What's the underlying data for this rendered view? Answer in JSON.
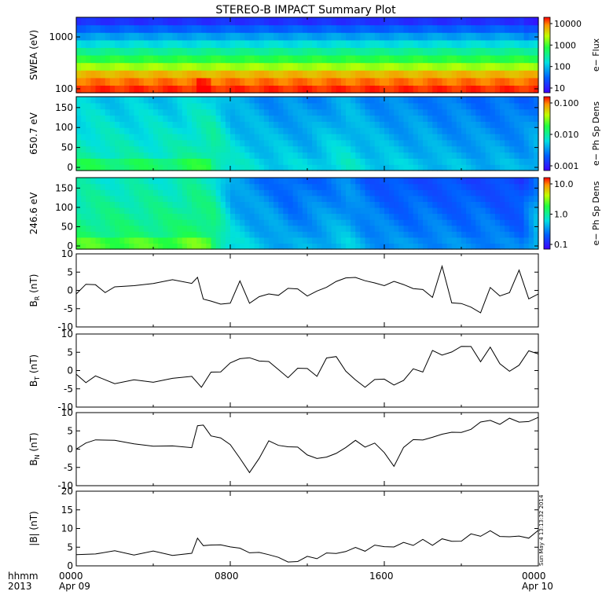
{
  "title": "STEREO-B IMPACT Summary Plot",
  "stamp": "Sun May  4 13:13:32 2014",
  "time_axis": {
    "row1": [
      "0000",
      "0800",
      "1600",
      "0000"
    ],
    "row2": [
      "Apr 09",
      "",
      "",
      "Apr 10"
    ],
    "left_row1": "hhmm",
    "left_row2": "2013"
  },
  "chart_data": [
    {
      "type": "heatmap",
      "ylabel": "SWEA (eV)",
      "ylog": true,
      "y_ticks": [
        "100",
        "1000"
      ],
      "colorbar": {
        "label": "e− Flux",
        "ticks": [
          "10",
          "100",
          "1000",
          "10000"
        ],
        "log": true
      },
      "colors": [
        "#ffff00",
        "#c8ff00",
        "#7cff00",
        "#2ef040",
        "#00e870",
        "#00d8d0",
        "#00a0ff",
        "#2a5cff",
        "#3a2cff",
        "#6030f0"
      ],
      "bands": [
        0.97,
        0.92,
        0.85,
        0.72,
        0.6,
        0.5,
        0.4,
        0.3,
        0.2,
        0.1
      ],
      "features": [
        {
          "x_hours": 6.5,
          "note": "enhanced low-energy flux"
        }
      ]
    },
    {
      "type": "heatmap",
      "ylabel": "650.7 eV",
      "y_ticks": [
        "0",
        "50",
        "100",
        "150"
      ],
      "colorbar": {
        "label": "e− Ph Sp Dens",
        "ticks": [
          "0.001",
          "0.010",
          "0.100"
        ],
        "log": true
      },
      "level_by_hour": [
        0.48,
        0.48,
        0.47,
        0.47,
        0.47,
        0.47,
        0.5,
        0.52,
        0.42,
        0.4,
        0.38,
        0.38,
        0.37,
        0.4,
        0.42,
        0.38,
        0.37,
        0.36,
        0.36,
        0.34,
        0.34,
        0.33,
        0.33,
        0.32,
        0.36
      ]
    },
    {
      "type": "heatmap",
      "ylabel": "246.6 eV",
      "y_ticks": [
        "0",
        "50",
        "100",
        "150"
      ],
      "colorbar": {
        "label": "e− Ph Sp Dens",
        "ticks": [
          "0.1",
          "1.0",
          "10.0"
        ],
        "log": true
      },
      "level_by_hour": [
        0.55,
        0.55,
        0.55,
        0.55,
        0.55,
        0.55,
        0.58,
        0.56,
        0.4,
        0.36,
        0.34,
        0.3,
        0.32,
        0.34,
        0.36,
        0.3,
        0.28,
        0.27,
        0.28,
        0.27,
        0.26,
        0.27,
        0.25,
        0.24,
        0.4
      ]
    },
    {
      "type": "line",
      "ylabel": "B",
      "ylabel_sub": "R",
      "ylabel_unit": " (nT)",
      "ylim": [
        -10,
        10
      ],
      "y_ticks": [
        "-10",
        "-5",
        "0",
        "5",
        "10"
      ],
      "x_hours": [
        0,
        0.5,
        1,
        1.5,
        2,
        3,
        4,
        5,
        6,
        6.3,
        6.6,
        7,
        7.5,
        8,
        8.5,
        9,
        9.5,
        10,
        10.5,
        11,
        11.5,
        12,
        12.5,
        13,
        13.5,
        14,
        14.5,
        15,
        15.5,
        16,
        16.5,
        17,
        17.5,
        18,
        18.5,
        19,
        19.5,
        20,
        20.5,
        21,
        21.5,
        22,
        22.5,
        23,
        23.5,
        24
      ],
      "values": [
        -1,
        2,
        1,
        0,
        0.5,
        1.5,
        2,
        2.5,
        2.5,
        3,
        -2,
        -3,
        -4,
        -3,
        2,
        -3,
        -2,
        -1,
        -1,
        0,
        1,
        -2,
        0,
        1,
        2,
        4,
        3,
        3,
        2,
        1,
        3,
        1,
        1,
        0,
        -2,
        7,
        -4,
        -3,
        -5,
        -6,
        1,
        -2,
        0,
        5,
        -2,
        -1
      ]
    },
    {
      "type": "line",
      "ylabel": "B",
      "ylabel_sub": "T",
      "ylabel_unit": " (nT)",
      "ylim": [
        -10,
        10
      ],
      "y_ticks": [
        "-10",
        "-5",
        "0",
        "5",
        "10"
      ],
      "x_hours": [
        0,
        0.5,
        1,
        2,
        3,
        4,
        5,
        6,
        6.5,
        7,
        7.5,
        8,
        8.5,
        9,
        9.5,
        10,
        10.5,
        11,
        11.5,
        12,
        12.5,
        13,
        13.5,
        14,
        14.5,
        15,
        15.5,
        16,
        16.5,
        17,
        17.5,
        18,
        18.5,
        19,
        19.5,
        20,
        20.5,
        21,
        21.5,
        22,
        22.5,
        23,
        23.5,
        24
      ],
      "values": [
        -1,
        -3,
        -2,
        -3,
        -3,
        -3,
        -2,
        -2,
        -4,
        -1,
        0,
        2,
        3,
        4,
        2,
        3,
        0,
        -2,
        1,
        0,
        -1,
        3,
        4,
        0,
        -3,
        -4,
        -3,
        -2,
        -4,
        -3,
        1,
        -1,
        6,
        4,
        5,
        7,
        6,
        3,
        6,
        2,
        0,
        1,
        6,
        4
      ]
    },
    {
      "type": "line",
      "ylabel": "B",
      "ylabel_sub": "N",
      "ylabel_unit": " (nT)",
      "ylim": [
        -10,
        10
      ],
      "y_ticks": [
        "-10",
        "-5",
        "0",
        "5",
        "10"
      ],
      "x_hours": [
        0,
        0.5,
        1,
        2,
        3,
        4,
        5,
        6,
        6.3,
        6.6,
        7,
        7.5,
        8,
        8.5,
        9,
        9.5,
        10,
        10.5,
        11,
        11.5,
        12,
        12.5,
        13,
        13.5,
        14,
        14.5,
        15,
        15.5,
        16,
        16.5,
        17,
        17.5,
        18,
        18.5,
        19,
        19.5,
        20,
        20.5,
        21,
        21.5,
        22,
        22.5,
        23,
        23.5,
        24
      ],
      "values": [
        0,
        2,
        2,
        3,
        1,
        1,
        1,
        0,
        7,
        6,
        4,
        3,
        1,
        -2,
        -7,
        -2,
        2,
        1,
        1,
        0,
        -1,
        -3,
        -2,
        -1,
        0,
        3,
        0,
        2,
        -1,
        -5,
        1,
        2,
        3,
        3,
        4,
        5,
        4,
        6,
        7,
        8,
        7,
        8,
        8,
        7,
        9
      ]
    },
    {
      "type": "line",
      "ylabel": "|B| (nT)",
      "ylim": [
        0,
        20
      ],
      "y_ticks": [
        "0",
        "5",
        "10",
        "15",
        "20"
      ],
      "x_hours": [
        0,
        1,
        2,
        3,
        4,
        5,
        6,
        6.3,
        6.6,
        7,
        7.5,
        8,
        8.5,
        9,
        9.5,
        10,
        10.5,
        11,
        11.5,
        12,
        12.5,
        13,
        13.5,
        14,
        14.5,
        15,
        15.5,
        16,
        16.5,
        17,
        17.5,
        18,
        18.5,
        19,
        19.5,
        20,
        20.5,
        21,
        21.5,
        22,
        22.5,
        23,
        23.5,
        24
      ],
      "values": [
        3,
        3.5,
        3.5,
        3.5,
        3.5,
        3,
        3.5,
        7,
        6,
        5,
        6,
        5,
        4.5,
        4,
        3,
        3.5,
        2,
        1,
        1.5,
        2,
        2.5,
        3,
        3.5,
        4,
        4.5,
        4.5,
        5,
        5.5,
        5,
        6,
        6,
        6.5,
        6,
        7,
        6.5,
        7,
        8,
        8.5,
        9,
        8,
        8,
        7.5,
        8,
        9
      ]
    }
  ]
}
